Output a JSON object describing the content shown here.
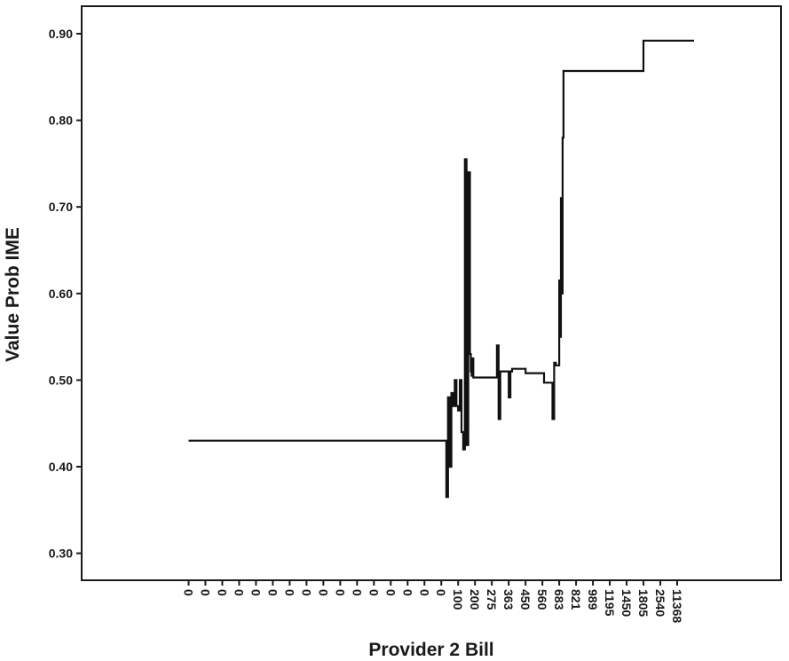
{
  "chart_data": {
    "type": "line",
    "xlabel": "Provider 2 Bill",
    "ylabel": "Value Prob IME",
    "ylim": [
      0.28,
      0.93
    ],
    "yticks": [
      "0.30",
      "0.40",
      "0.50",
      "0.60",
      "0.70",
      "0.80",
      "0.90"
    ],
    "xticks": [
      "0",
      "0",
      "0",
      "0",
      "0",
      "0",
      "0",
      "0",
      "0",
      "0",
      "0",
      "0",
      "0",
      "0",
      "0",
      "0",
      "100",
      "200",
      "275",
      "363",
      "450",
      "560",
      "683",
      "821",
      "989",
      "1195",
      "1450",
      "1805",
      "2540",
      "11368"
    ],
    "grid": false,
    "series": [
      {
        "values_x_index": [
          0.0,
          15.3,
          15.3,
          15.4,
          15.4,
          15.5,
          15.5,
          15.6,
          15.6,
          15.7,
          15.7,
          15.8,
          15.8,
          15.9,
          15.9,
          16.0,
          16.0,
          16.1,
          16.1,
          16.2,
          16.2,
          16.3,
          16.3,
          16.4,
          16.4,
          16.5,
          16.5,
          16.6,
          16.6,
          16.7,
          16.7,
          16.75,
          16.75,
          16.8,
          16.8,
          16.85,
          16.85,
          16.9,
          16.9,
          17.0,
          17.0,
          18.3,
          18.3,
          18.4,
          18.4,
          18.5,
          18.5,
          19.0,
          19.0,
          19.1,
          19.1,
          19.2,
          19.2,
          20.0,
          20.0,
          21.1,
          21.1,
          21.2,
          21.2,
          21.6,
          21.6,
          21.7,
          21.7,
          21.8,
          21.8,
          22.0,
          22.0,
          22.05,
          22.05,
          22.1,
          22.1,
          22.15,
          22.15,
          22.2,
          22.2,
          22.25,
          22.25,
          22.3,
          22.3,
          27.0,
          27.0,
          30.0
        ],
        "values": [
          0.43,
          0.43,
          0.365,
          0.365,
          0.48,
          0.48,
          0.4,
          0.4,
          0.485,
          0.485,
          0.47,
          0.47,
          0.5,
          0.5,
          0.47,
          0.47,
          0.465,
          0.465,
          0.5,
          0.5,
          0.44,
          0.44,
          0.42,
          0.42,
          0.755,
          0.755,
          0.425,
          0.425,
          0.74,
          0.74,
          0.53,
          0.53,
          0.51,
          0.51,
          0.505,
          0.505,
          0.525,
          0.525,
          0.503,
          0.503,
          0.503,
          0.503,
          0.54,
          0.54,
          0.455,
          0.455,
          0.51,
          0.51,
          0.48,
          0.48,
          0.51,
          0.51,
          0.513,
          0.513,
          0.508,
          0.508,
          0.497,
          0.497,
          0.497,
          0.497,
          0.455,
          0.455,
          0.52,
          0.52,
          0.517,
          0.517,
          0.615,
          0.615,
          0.55,
          0.55,
          0.71,
          0.71,
          0.6,
          0.6,
          0.78,
          0.78,
          0.857,
          0.857,
          0.857,
          0.857,
          0.892,
          0.892
        ]
      }
    ]
  }
}
